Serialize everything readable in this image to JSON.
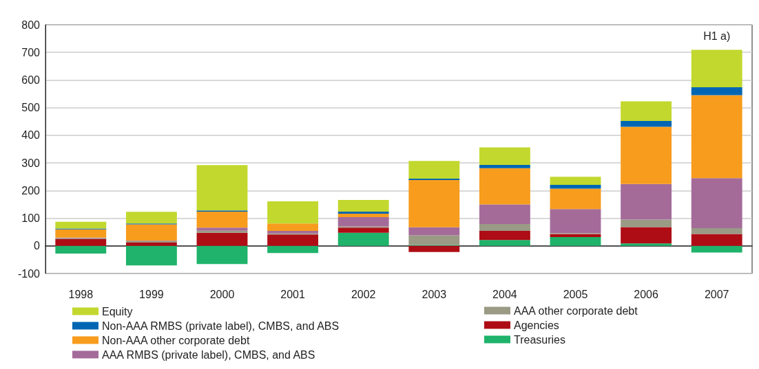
{
  "chart_data": {
    "type": "bar",
    "stacked": true,
    "categories": [
      "1998",
      "1999",
      "2000",
      "2001",
      "2002",
      "2003",
      "2004",
      "2005",
      "2006",
      "2007"
    ],
    "ylim": [
      -100,
      800
    ],
    "yticks": [
      -100,
      0,
      100,
      200,
      300,
      400,
      500,
      600,
      700,
      800
    ],
    "grid": "y",
    "legend": "bottom",
    "annotations": [
      {
        "text": "H1 a)",
        "x": "2007",
        "y": 709
      }
    ],
    "series": [
      {
        "name": "Treasuries",
        "color": "#1fb36b",
        "values": [
          -28,
          -71,
          -66,
          -26,
          47,
          3,
          21,
          32,
          9,
          -24
        ]
      },
      {
        "name": "Agencies",
        "color": "#ae0d15",
        "values": [
          24,
          12,
          47,
          41,
          19,
          -22,
          33,
          11,
          59,
          43
        ]
      },
      {
        "name": "AAA other corporate debt",
        "color": "#9a9a85",
        "values": [
          4,
          5,
          8,
          4,
          4,
          35,
          25,
          3,
          27,
          21
        ]
      },
      {
        "name": "AAA RMBS (private label), CMBS, and ABS",
        "color": "#a46b99",
        "values": [
          2,
          2,
          11,
          9,
          34,
          29,
          71,
          87,
          129,
          181
        ]
      },
      {
        "name": "Non-AAA other corporate debt",
        "color": "#f79c1d",
        "values": [
          30,
          59,
          58,
          27,
          12,
          171,
          131,
          74,
          207,
          300
        ]
      },
      {
        "name": "Non-AAA RMBS (private label), CMBS, and ABS",
        "color": "#0066b3",
        "values": [
          3,
          3,
          4,
          0,
          8,
          5,
          12,
          14,
          21,
          29
        ]
      },
      {
        "name": "Equity",
        "color": "#c2d82e",
        "values": [
          24,
          42,
          164,
          80,
          42,
          64,
          63,
          29,
          71,
          135
        ]
      }
    ]
  }
}
